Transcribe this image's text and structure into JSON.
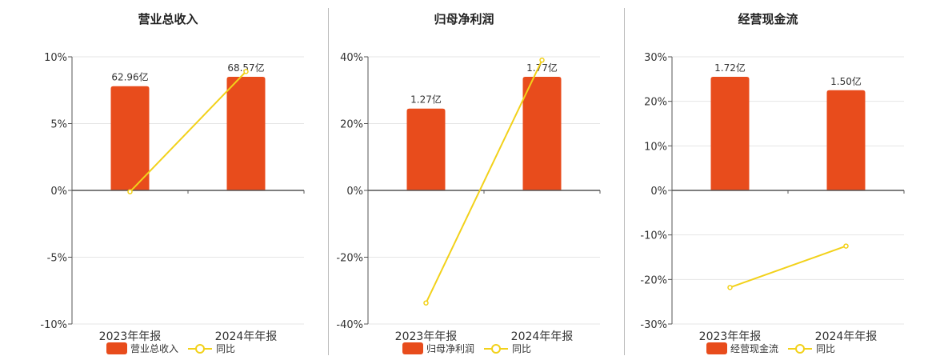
{
  "legend_compare_label": "同比",
  "colors": {
    "bar": "#e84c1c",
    "line": "#f2d11a",
    "axis": "#555555",
    "grid": "#e5e5e5"
  },
  "chart_data": [
    {
      "type": "bar",
      "title": "营业总收入",
      "categories": [
        "2023年年报",
        "2024年年报"
      ],
      "ylim": [
        -10,
        10
      ],
      "yticks": [
        "10%",
        "5%",
        "0%",
        "-5%",
        "-10%"
      ],
      "ytick_values": [
        10,
        5,
        0,
        -5,
        -10
      ],
      "series": [
        {
          "name": "营业总收入",
          "kind": "bar",
          "axis_values": [
            7.8,
            8.5
          ],
          "data_labels": [
            "62.96亿",
            "68.57亿"
          ]
        },
        {
          "name": "同比",
          "kind": "line",
          "values": [
            -0.1,
            8.9
          ]
        }
      ],
      "grid": true,
      "legend": "bottom"
    },
    {
      "type": "bar",
      "title": "归母净利润",
      "categories": [
        "2023年年报",
        "2024年年报"
      ],
      "ylim": [
        -40,
        40
      ],
      "yticks": [
        "40%",
        "20%",
        "0%",
        "-20%",
        "-40%"
      ],
      "ytick_values": [
        40,
        20,
        0,
        -20,
        -40
      ],
      "series": [
        {
          "name": "归母净利润",
          "kind": "bar",
          "axis_values": [
            24.5,
            34.0
          ],
          "data_labels": [
            "1.27亿",
            "1.77亿"
          ]
        },
        {
          "name": "同比",
          "kind": "line",
          "values": [
            -33.7,
            39.0
          ]
        }
      ],
      "grid": true,
      "legend": "bottom"
    },
    {
      "type": "bar",
      "title": "经营现金流",
      "categories": [
        "2023年年报",
        "2024年年报"
      ],
      "ylim": [
        -30,
        30
      ],
      "yticks": [
        "30%",
        "20%",
        "10%",
        "0%",
        "-10%",
        "-20%",
        "-30%"
      ],
      "ytick_values": [
        30,
        20,
        10,
        0,
        -10,
        -20,
        -30
      ],
      "series": [
        {
          "name": "经营现金流",
          "kind": "bar",
          "axis_values": [
            25.5,
            22.5
          ],
          "data_labels": [
            "1.72亿",
            "1.50亿"
          ]
        },
        {
          "name": "同比",
          "kind": "line",
          "values": [
            -21.8,
            -12.5
          ]
        }
      ],
      "grid": true,
      "legend": "bottom"
    }
  ]
}
